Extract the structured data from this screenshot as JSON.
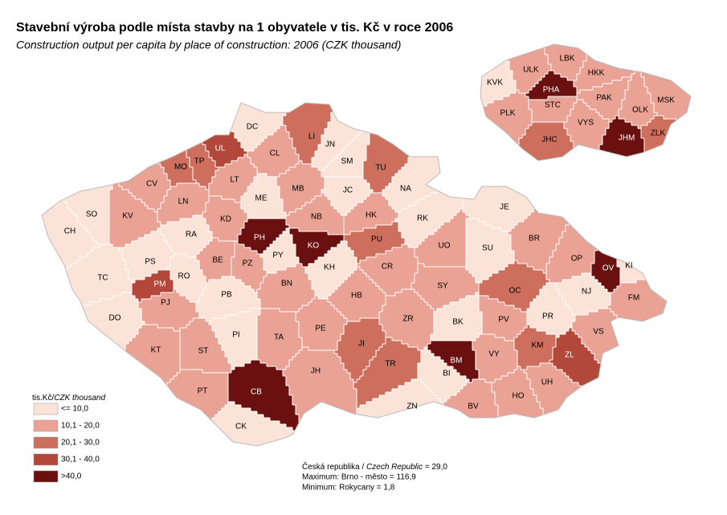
{
  "header": {
    "title": "Stavební výroba podle místa stavby na 1 obyvatele v tis. Kč v roce 2006",
    "subtitle": "Construction output per capita by place of construction: 2006 (CZK thousand)"
  },
  "legend": {
    "title": "tis.Kč/",
    "title_en": "CZK thousand",
    "classes": [
      {
        "label": "<= 10,0",
        "color": "#fbe3d8"
      },
      {
        "label": "10,1 - 20,0",
        "color": "#e9a294"
      },
      {
        "label": "20,1 - 30,0",
        "color": "#cd6f5c"
      },
      {
        "label": "30,1 - 40,0",
        "color": "#b2473a"
      },
      {
        "label": ">40,0",
        "color": "#6b1010"
      }
    ]
  },
  "notes": {
    "country": "Česká republika / ",
    "country_en": "Czech Republic",
    "country_value": " = 29,0",
    "maximum": "Maximum:  Brno - město =  116,9",
    "minimum": "Minimum: Rokycany = 1,8"
  },
  "districts": [
    {
      "label": "DC",
      "class": 0
    },
    {
      "label": "CL",
      "class": 1
    },
    {
      "label": "LI",
      "class": 2
    },
    {
      "label": "JN",
      "class": 0
    },
    {
      "label": "SM",
      "class": 0
    },
    {
      "label": "TU",
      "class": 2
    },
    {
      "label": "NA",
      "class": 0
    },
    {
      "label": "UL",
      "class": 3
    },
    {
      "label": "TP",
      "class": 2
    },
    {
      "label": "MO",
      "class": 2
    },
    {
      "label": "LT",
      "class": 1
    },
    {
      "label": "CV",
      "class": 1
    },
    {
      "label": "ME",
      "class": 0
    },
    {
      "label": "MB",
      "class": 1
    },
    {
      "label": "JC",
      "class": 0
    },
    {
      "label": "SO",
      "class": 0
    },
    {
      "label": "CH",
      "class": 0
    },
    {
      "label": "KV",
      "class": 1
    },
    {
      "label": "LN",
      "class": 1
    },
    {
      "label": "KD",
      "class": 1
    },
    {
      "label": "RA",
      "class": 0
    },
    {
      "label": "PH",
      "class": 4
    },
    {
      "label": "NB",
      "class": 1
    },
    {
      "label": "HK",
      "class": 1
    },
    {
      "label": "RK",
      "class": 0
    },
    {
      "label": "JE",
      "class": 0
    },
    {
      "label": "BR",
      "class": 1
    },
    {
      "label": "KO",
      "class": 4
    },
    {
      "label": "PU",
      "class": 2
    },
    {
      "label": "UO",
      "class": 1
    },
    {
      "label": "SU",
      "class": 0
    },
    {
      "label": "OP",
      "class": 1
    },
    {
      "label": "OV",
      "class": 4
    },
    {
      "label": "KI",
      "class": 0
    },
    {
      "label": "PS",
      "class": 0
    },
    {
      "label": "BE",
      "class": 1
    },
    {
      "label": "PZ",
      "class": 1
    },
    {
      "label": "PY",
      "class": 0
    },
    {
      "label": "KH",
      "class": 0
    },
    {
      "label": "CR",
      "class": 1
    },
    {
      "label": "TC",
      "class": 0
    },
    {
      "label": "RO",
      "class": 0
    },
    {
      "label": "PM",
      "class": 3
    },
    {
      "label": "PJ",
      "class": 1
    },
    {
      "label": "BN",
      "class": 1
    },
    {
      "label": "SY",
      "class": 1
    },
    {
      "label": "OC",
      "class": 2
    },
    {
      "label": "NJ",
      "class": 0
    },
    {
      "label": "FM",
      "class": 1
    },
    {
      "label": "PB",
      "class": 0
    },
    {
      "label": "HB",
      "class": 1
    },
    {
      "label": "PR",
      "class": 0
    },
    {
      "label": "DO",
      "class": 0
    },
    {
      "label": "ZR",
      "class": 1
    },
    {
      "label": "BK",
      "class": 0
    },
    {
      "label": "PV",
      "class": 1
    },
    {
      "label": "VS",
      "class": 1
    },
    {
      "label": "PI",
      "class": 0
    },
    {
      "label": "TA",
      "class": 1
    },
    {
      "label": "PE",
      "class": 1
    },
    {
      "label": "JI",
      "class": 2
    },
    {
      "label": "KM",
      "class": 2
    },
    {
      "label": "ZL",
      "class": 3
    },
    {
      "label": "KT",
      "class": 1
    },
    {
      "label": "ST",
      "class": 1
    },
    {
      "label": "TR",
      "class": 2
    },
    {
      "label": "BM",
      "class": 4
    },
    {
      "label": "VY",
      "class": 1
    },
    {
      "label": "JH",
      "class": 1
    },
    {
      "label": "BI",
      "class": 0
    },
    {
      "label": "UH",
      "class": 1
    },
    {
      "label": "PT",
      "class": 1
    },
    {
      "label": "CB",
      "class": 4
    },
    {
      "label": "ZN",
      "class": 0
    },
    {
      "label": "HO",
      "class": 1
    },
    {
      "label": "BV",
      "class": 1
    },
    {
      "label": "CK",
      "class": 0
    }
  ],
  "regions": [
    {
      "label": "LBK",
      "class": 1
    },
    {
      "label": "ULK",
      "class": 1
    },
    {
      "label": "HKK",
      "class": 1
    },
    {
      "label": "KVK",
      "class": 0
    },
    {
      "label": "PHA",
      "class": 4
    },
    {
      "label": "PAK",
      "class": 1
    },
    {
      "label": "MSK",
      "class": 1
    },
    {
      "label": "STC",
      "class": 1
    },
    {
      "label": "OLK",
      "class": 1
    },
    {
      "label": "PLK",
      "class": 1
    },
    {
      "label": "VYS",
      "class": 1
    },
    {
      "label": "JHC",
      "class": 2
    },
    {
      "label": "JHM",
      "class": 4
    },
    {
      "label": "ZLK",
      "class": 2
    }
  ]
}
